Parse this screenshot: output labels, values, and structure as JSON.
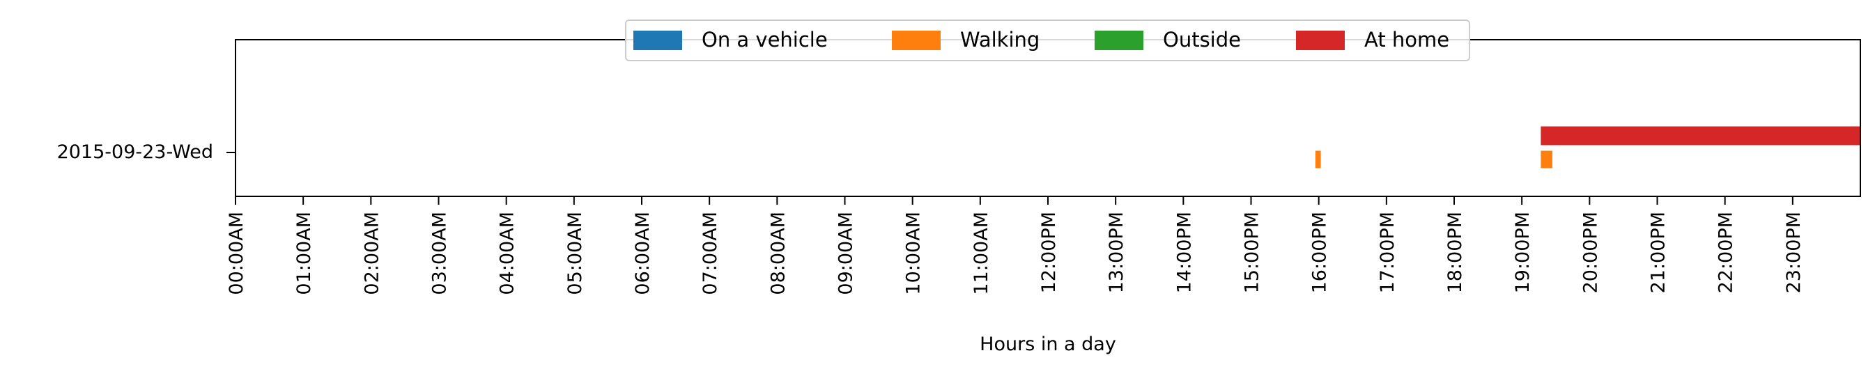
{
  "chart_data": {
    "type": "timeline",
    "xlabel": "Hours in a day",
    "xlim": [
      0,
      24
    ],
    "x_ticks": [
      {
        "value": 0,
        "label": "00:00AM"
      },
      {
        "value": 1,
        "label": "01:00AM"
      },
      {
        "value": 2,
        "label": "02:00AM"
      },
      {
        "value": 3,
        "label": "03:00AM"
      },
      {
        "value": 4,
        "label": "04:00AM"
      },
      {
        "value": 5,
        "label": "05:00AM"
      },
      {
        "value": 6,
        "label": "06:00AM"
      },
      {
        "value": 7,
        "label": "07:00AM"
      },
      {
        "value": 8,
        "label": "08:00AM"
      },
      {
        "value": 9,
        "label": "09:00AM"
      },
      {
        "value": 10,
        "label": "10:00AM"
      },
      {
        "value": 11,
        "label": "11:00AM"
      },
      {
        "value": 12,
        "label": "12:00PM"
      },
      {
        "value": 13,
        "label": "13:00PM"
      },
      {
        "value": 14,
        "label": "14:00PM"
      },
      {
        "value": 15,
        "label": "15:00PM"
      },
      {
        "value": 16,
        "label": "16:00PM"
      },
      {
        "value": 17,
        "label": "17:00PM"
      },
      {
        "value": 18,
        "label": "18:00PM"
      },
      {
        "value": 19,
        "label": "19:00PM"
      },
      {
        "value": 20,
        "label": "20:00PM"
      },
      {
        "value": 21,
        "label": "21:00PM"
      },
      {
        "value": 22,
        "label": "22:00PM"
      },
      {
        "value": 23,
        "label": "23:00PM"
      }
    ],
    "rows": [
      "2015-09-23-Wed"
    ],
    "legend_position": "top-center",
    "series": [
      {
        "name": "On a vehicle",
        "color": "#1f77b4",
        "intervals": []
      },
      {
        "name": "Walking",
        "color": "#ff7f0e",
        "intervals": [
          {
            "start": 15.95,
            "end": 16.03
          },
          {
            "start": 19.28,
            "end": 19.45
          }
        ]
      },
      {
        "name": "Outside",
        "color": "#2ca02c",
        "intervals": []
      },
      {
        "name": "At home",
        "color": "#d62728",
        "intervals": [
          {
            "start": 19.28,
            "end": 24.0
          }
        ]
      }
    ]
  }
}
